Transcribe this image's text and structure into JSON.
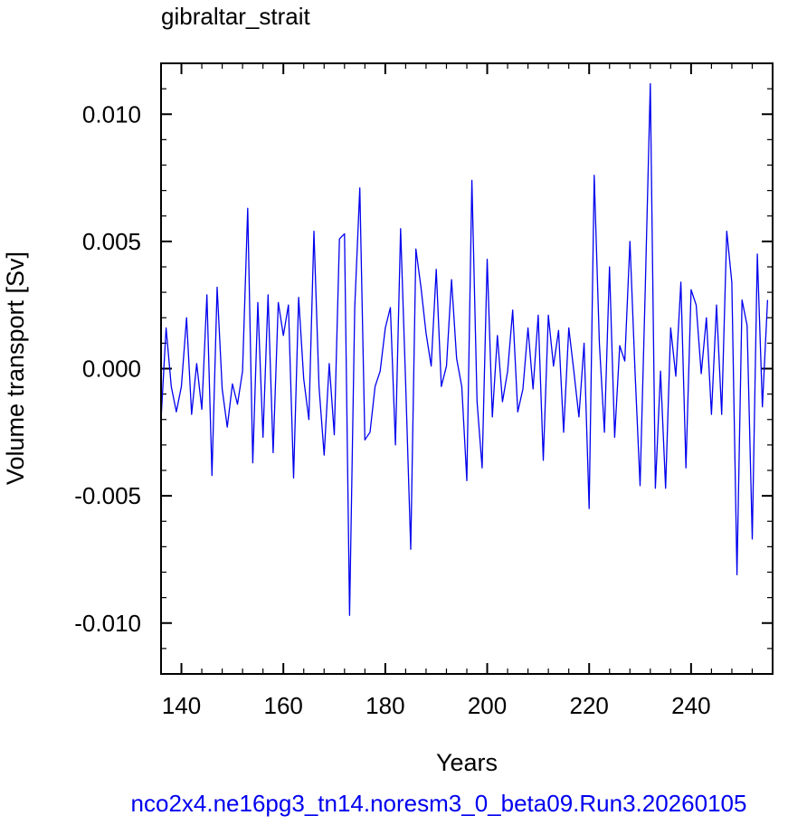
{
  "chart_data": {
    "type": "line",
    "title": "gibraltar_strait",
    "xlabel": "Years",
    "ylabel": "Volume transport [Sv]",
    "footer": "nco2x4.ne16pg3_tn14.noresm3_0_beta09.Run3.20260105",
    "xlim": [
      136,
      256
    ],
    "ylim": [
      -0.012,
      0.012
    ],
    "x_ticks": [
      140,
      160,
      180,
      200,
      220,
      240
    ],
    "x_tick_labels": [
      "140",
      "160",
      "180",
      "200",
      "220",
      "240"
    ],
    "y_ticks": [
      -0.01,
      -0.005,
      0.0,
      0.005,
      0.01
    ],
    "y_tick_labels": [
      "-0.010",
      "-0.005",
      "0.000",
      "0.005",
      "0.010"
    ],
    "grid": false,
    "line_color": "#0000ee",
    "footer_color": "#0000ee",
    "series": [
      {
        "x_start": 136,
        "x_step": 1,
        "values": [
          -0.002,
          0.0016,
          -0.0007,
          -0.0017,
          -0.0007,
          0.002,
          -0.0018,
          0.0002,
          -0.0016,
          0.0029,
          -0.0042,
          0.0032,
          -0.0008,
          -0.0023,
          -0.0006,
          -0.0014,
          -0.0001,
          0.0063,
          -0.0037,
          0.0026,
          -0.0027,
          0.0029,
          -0.0033,
          0.0026,
          0.0013,
          0.0025,
          -0.0043,
          0.0028,
          -0.0004,
          -0.002,
          0.0054,
          -0.0007,
          -0.0034,
          0.0002,
          -0.0026,
          0.0051,
          0.0053,
          -0.0097,
          0.0024,
          0.0071,
          -0.0028,
          -0.0025,
          -0.0007,
          -0.0001,
          0.0016,
          0.0024,
          -0.003,
          0.0055,
          -0.0006,
          -0.0071,
          0.0047,
          0.0032,
          0.0014,
          0.0001,
          0.0039,
          -0.0007,
          0.0001,
          0.0035,
          0.0004,
          -0.0007,
          -0.0044,
          0.0074,
          -0.0013,
          -0.0039,
          0.0043,
          -0.0019,
          0.0013,
          -0.0013,
          -0.0001,
          0.0023,
          -0.0017,
          -0.0008,
          0.0016,
          -0.0008,
          0.0021,
          -0.0036,
          0.0021,
          0.0001,
          0.0015,
          -0.0025,
          0.0016,
          -0.0001,
          -0.0019,
          0.001,
          -0.0055,
          0.0076,
          0.001,
          -0.0025,
          0.004,
          -0.0027,
          0.0009,
          0.0003,
          0.005,
          -0.0001,
          -0.0046,
          0.0031,
          0.0112,
          -0.0047,
          -0.0001,
          -0.0047,
          0.0016,
          -0.0003,
          0.0034,
          -0.0039,
          0.0031,
          0.0025,
          -0.0002,
          0.002,
          -0.0018,
          0.0025,
          -0.0018,
          0.0054,
          0.0034,
          -0.0081,
          0.0027,
          0.0017,
          -0.0067,
          0.0045,
          -0.0015,
          0.0027
        ]
      }
    ]
  }
}
